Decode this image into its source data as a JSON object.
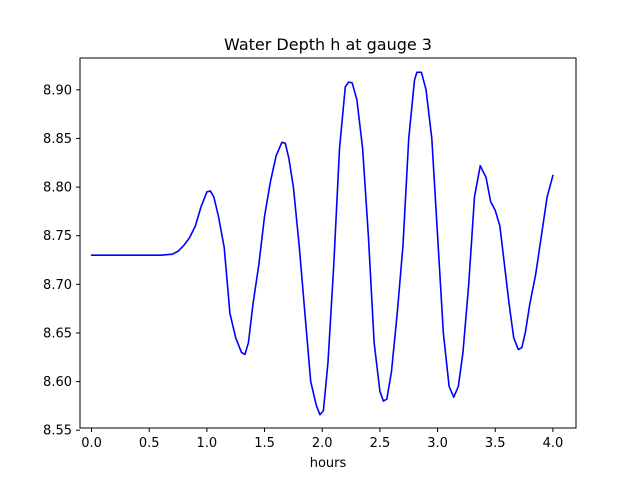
{
  "chart_data": {
    "type": "line",
    "title": "Water Depth h at gauge 3",
    "xlabel": "hours",
    "ylabel": "",
    "xlim": [
      -0.1,
      4.2
    ],
    "ylim": [
      8.5523,
      8.9327
    ],
    "xticks": [
      0.0,
      0.5,
      1.0,
      1.5,
      2.0,
      2.5,
      3.0,
      3.5,
      4.0
    ],
    "xtick_labels": [
      "0.0",
      "0.5",
      "1.0",
      "1.5",
      "2.0",
      "2.5",
      "3.0",
      "3.5",
      "4.0"
    ],
    "yticks": [
      8.55,
      8.6,
      8.65,
      8.7,
      8.75,
      8.8,
      8.85,
      8.9
    ],
    "ytick_labels": [
      "8.55",
      "8.60",
      "8.65",
      "8.70",
      "8.75",
      "8.80",
      "8.85",
      "8.90"
    ],
    "grid": false,
    "line_color": "#0000ff",
    "series": [
      {
        "x": [
          0.0,
          0.2,
          0.4,
          0.6,
          0.7,
          0.75,
          0.8,
          0.85,
          0.9,
          0.95,
          1.0,
          1.03,
          1.06,
          1.1,
          1.15,
          1.2,
          1.25,
          1.3,
          1.33,
          1.36,
          1.4,
          1.45,
          1.5,
          1.55,
          1.6,
          1.65,
          1.68,
          1.71,
          1.75,
          1.8,
          1.85,
          1.9,
          1.95,
          1.98,
          2.01,
          2.05,
          2.1,
          2.15,
          2.2,
          2.23,
          2.26,
          2.3,
          2.35,
          2.4,
          2.45,
          2.5,
          2.53,
          2.56,
          2.6,
          2.65,
          2.7,
          2.75,
          2.8,
          2.82,
          2.86,
          2.9,
          2.95,
          3.0,
          3.05,
          3.1,
          3.14,
          3.18,
          3.22,
          3.27,
          3.32,
          3.37,
          3.42,
          3.46,
          3.5,
          3.54,
          3.58,
          3.62,
          3.66,
          3.7,
          3.73,
          3.76,
          3.8,
          3.85,
          3.9,
          3.95,
          4.0
        ],
        "y": [
          8.73,
          8.73,
          8.73,
          8.73,
          8.731,
          8.734,
          8.74,
          8.748,
          8.76,
          8.78,
          8.795,
          8.796,
          8.79,
          8.77,
          8.738,
          8.67,
          8.645,
          8.63,
          8.628,
          8.64,
          8.68,
          8.72,
          8.77,
          8.805,
          8.832,
          8.846,
          8.845,
          8.83,
          8.8,
          8.74,
          8.67,
          8.6,
          8.575,
          8.566,
          8.57,
          8.62,
          8.72,
          8.84,
          8.903,
          8.908,
          8.907,
          8.89,
          8.84,
          8.75,
          8.64,
          8.59,
          8.58,
          8.582,
          8.61,
          8.67,
          8.74,
          8.85,
          8.91,
          8.918,
          8.918,
          8.9,
          8.85,
          8.75,
          8.65,
          8.595,
          8.584,
          8.595,
          8.63,
          8.7,
          8.79,
          8.822,
          8.81,
          8.785,
          8.776,
          8.76,
          8.72,
          8.68,
          8.645,
          8.633,
          8.635,
          8.65,
          8.68,
          8.71,
          8.75,
          8.79,
          8.812
        ]
      }
    ]
  }
}
